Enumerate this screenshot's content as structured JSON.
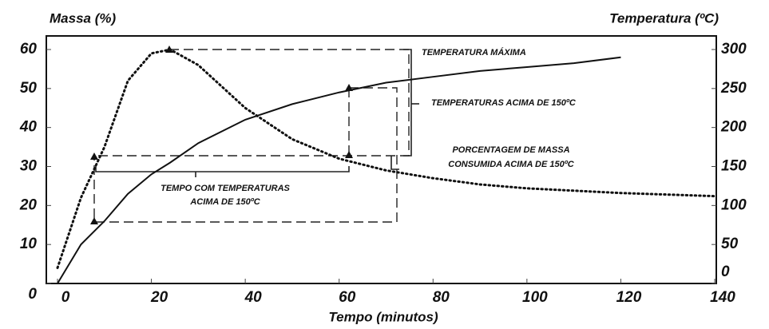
{
  "chart_data": {
    "type": "line",
    "ylabel": "Massa (%)",
    "y2label": "Temperatura (ºC)",
    "xlabel": "Tempo (minutos)",
    "x": [
      0,
      5,
      10,
      15,
      20,
      24,
      30,
      40,
      50,
      60,
      70,
      80,
      90,
      100,
      110,
      120,
      130,
      140
    ],
    "series": [
      {
        "name": "Massa",
        "color": "#111",
        "style": "solid",
        "values": [
          0,
          10,
          16,
          23,
          28,
          31,
          36,
          42,
          46,
          49,
          51.5,
          53,
          54.5,
          55.5,
          56.5,
          58,
          null,
          null
        ]
      },
      {
        "name": "Temperatura",
        "color": "#111",
        "style": "dotted",
        "axis": "y2",
        "values": [
          20,
          110,
          175,
          260,
          295,
          300,
          280,
          225,
          185,
          160,
          145,
          135,
          127,
          122,
          119,
          116,
          114,
          112
        ]
      }
    ],
    "xlim": [
      0,
      140
    ],
    "xticks": [
      0,
      20,
      40,
      60,
      80,
      100,
      120,
      140
    ],
    "ylim": [
      0,
      60
    ],
    "yticks": [
      0,
      10,
      20,
      30,
      40,
      50,
      60
    ],
    "y2lim": [
      0,
      300
    ],
    "y2ticks": [
      0,
      50,
      100,
      150,
      200,
      250,
      300
    ],
    "annotations": [
      [
        "TEMPERATURA MÁXIMA"
      ],
      [
        "TEMPERATURAS ACIMA DE 150ºC"
      ],
      [
        "PORCENTAGEM DE MASSA",
        "CONSUMIDA ACIMA DE 150ºC"
      ],
      [
        "TEMPO COM TEMPERATURAS",
        "ACIMA DE 150ºC"
      ]
    ]
  }
}
